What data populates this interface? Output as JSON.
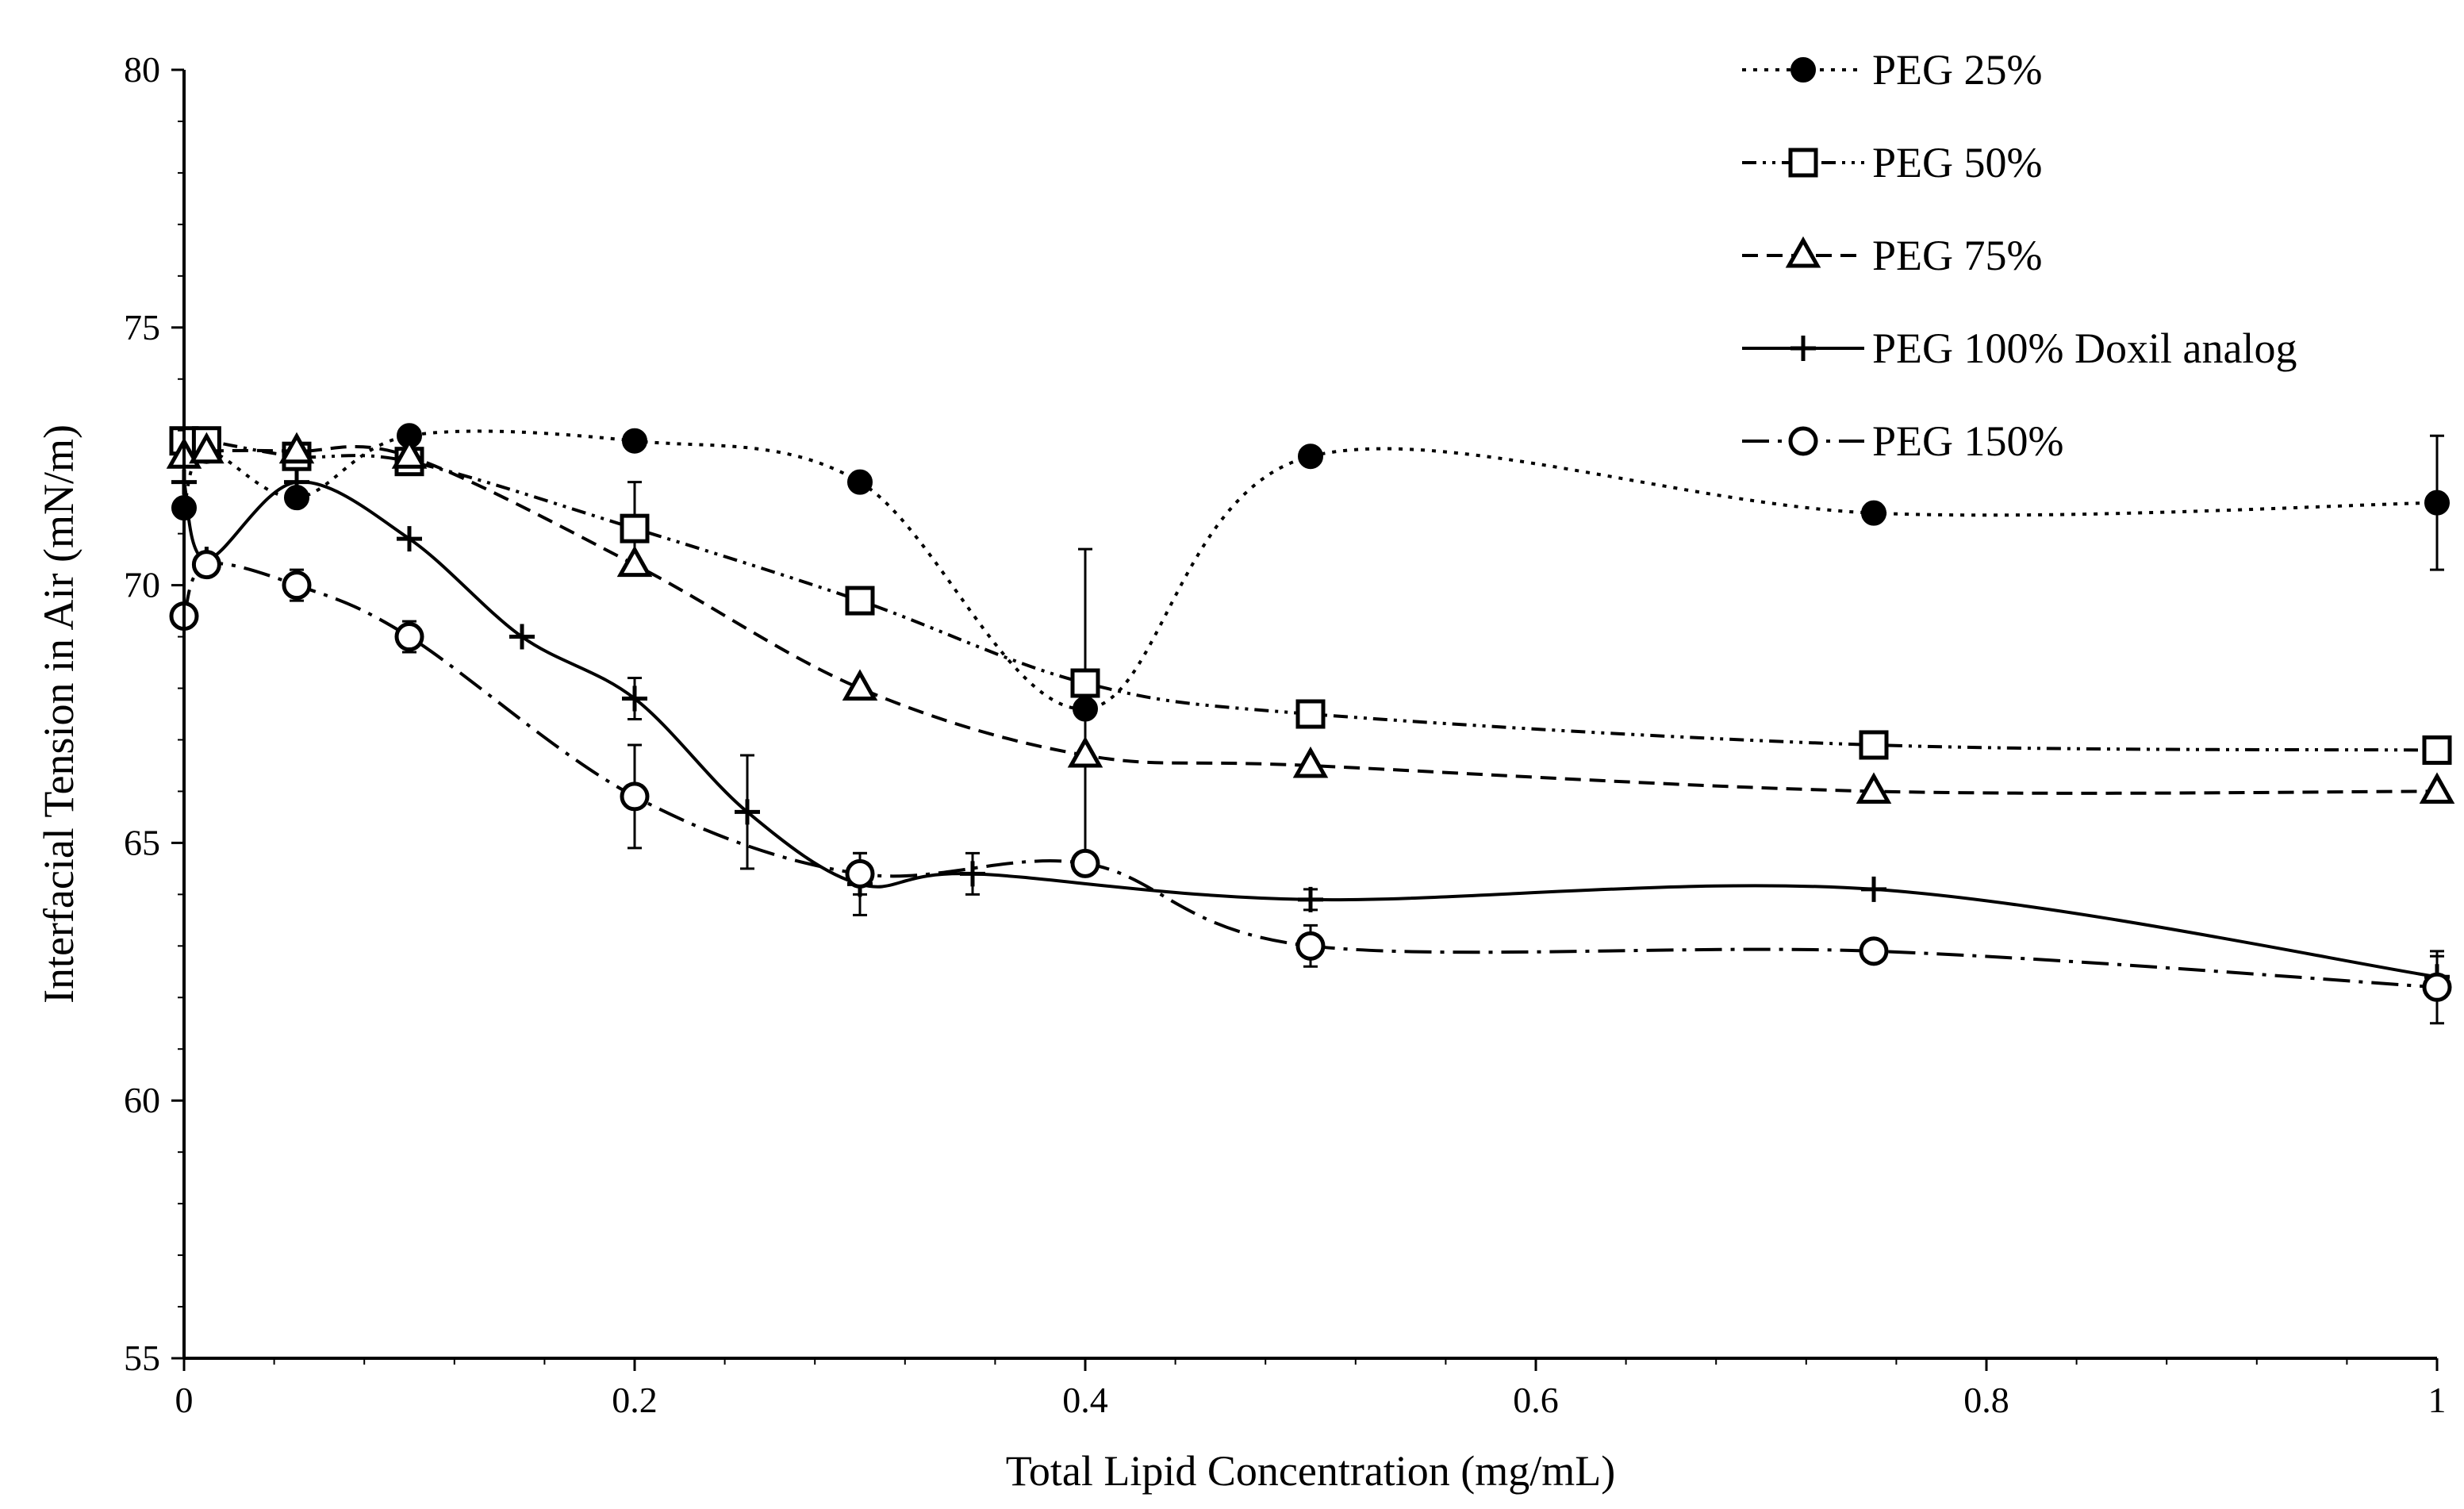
{
  "chart_data": {
    "type": "line",
    "xlabel": "Total Lipid Concentration (mg/mL)",
    "ylabel": "Interfacial Tension in Air (mN/m)",
    "xlim": [
      0,
      1
    ],
    "ylim": [
      55,
      80
    ],
    "xticks": [
      0,
      0.2,
      0.4,
      0.6,
      0.8,
      1
    ],
    "xtick_labels": [
      "0",
      "0.2",
      "0.4",
      "0.6",
      "0.8",
      "1"
    ],
    "yticks": [
      55,
      60,
      65,
      70,
      75,
      80
    ],
    "ytick_labels": [
      "55",
      "60",
      "65",
      "70",
      "75",
      "80"
    ],
    "grid": false,
    "legend_position": "top-right",
    "series": [
      {
        "name": "PEG 25%",
        "marker": "filled-circle",
        "line": "dotted",
        "x": [
          0,
          0.01,
          0.05,
          0.1,
          0.2,
          0.3,
          0.4,
          0.5,
          0.75,
          1
        ],
        "y": [
          71.5,
          72.6,
          71.7,
          72.9,
          72.8,
          72.0,
          67.6,
          72.5,
          71.4,
          71.6
        ],
        "err": [
          0,
          0,
          0,
          0,
          0,
          0,
          3.1,
          0,
          0,
          1.3
        ]
      },
      {
        "name": "PEG 50%",
        "marker": "open-square",
        "line": "dash-dot-dot",
        "x": [
          0,
          0.01,
          0.05,
          0.1,
          0.2,
          0.3,
          0.4,
          0.5,
          0.75,
          1
        ],
        "y": [
          72.8,
          72.8,
          72.5,
          72.4,
          71.1,
          69.7,
          68.1,
          67.5,
          66.9,
          66.8
        ],
        "err": [
          0,
          0,
          0,
          0,
          0.9,
          0,
          0,
          0,
          0,
          0
        ]
      },
      {
        "name": "PEG 75%",
        "marker": "open-triangle",
        "line": "dashed",
        "x": [
          0,
          0.01,
          0.05,
          0.1,
          0.2,
          0.3,
          0.4,
          0.5,
          0.75,
          1
        ],
        "y": [
          72.5,
          72.6,
          72.6,
          72.5,
          70.4,
          68.0,
          66.7,
          66.5,
          66.0,
          66.0
        ],
        "err": [
          0,
          0,
          0,
          0,
          0,
          0,
          0,
          0,
          0,
          0
        ]
      },
      {
        "name": "PEG 100% Doxil analog",
        "marker": "plus",
        "line": "solid",
        "x": [
          0,
          0.01,
          0.05,
          0.1,
          0.15,
          0.2,
          0.25,
          0.3,
          0.35,
          0.5,
          0.75,
          1
        ],
        "y": [
          72.0,
          70.5,
          72.0,
          70.9,
          69.0,
          67.8,
          65.6,
          64.2,
          64.4,
          63.9,
          64.1,
          62.4
        ],
        "err": [
          0,
          0,
          0,
          0,
          0,
          0.4,
          1.1,
          0.6,
          0.4,
          0.2,
          0,
          0.4
        ]
      },
      {
        "name": "PEG 150%",
        "marker": "open-circle",
        "line": "long-dash-dot",
        "x": [
          0,
          0.01,
          0.05,
          0.1,
          0.2,
          0.3,
          0.4,
          0.5,
          0.75,
          1
        ],
        "y": [
          69.4,
          70.4,
          70.0,
          69.0,
          65.9,
          64.4,
          64.6,
          63.0,
          62.9,
          62.2
        ],
        "err": [
          0,
          0,
          0.3,
          0.3,
          1.0,
          0.4,
          0,
          0.4,
          0,
          0.7
        ]
      }
    ]
  }
}
